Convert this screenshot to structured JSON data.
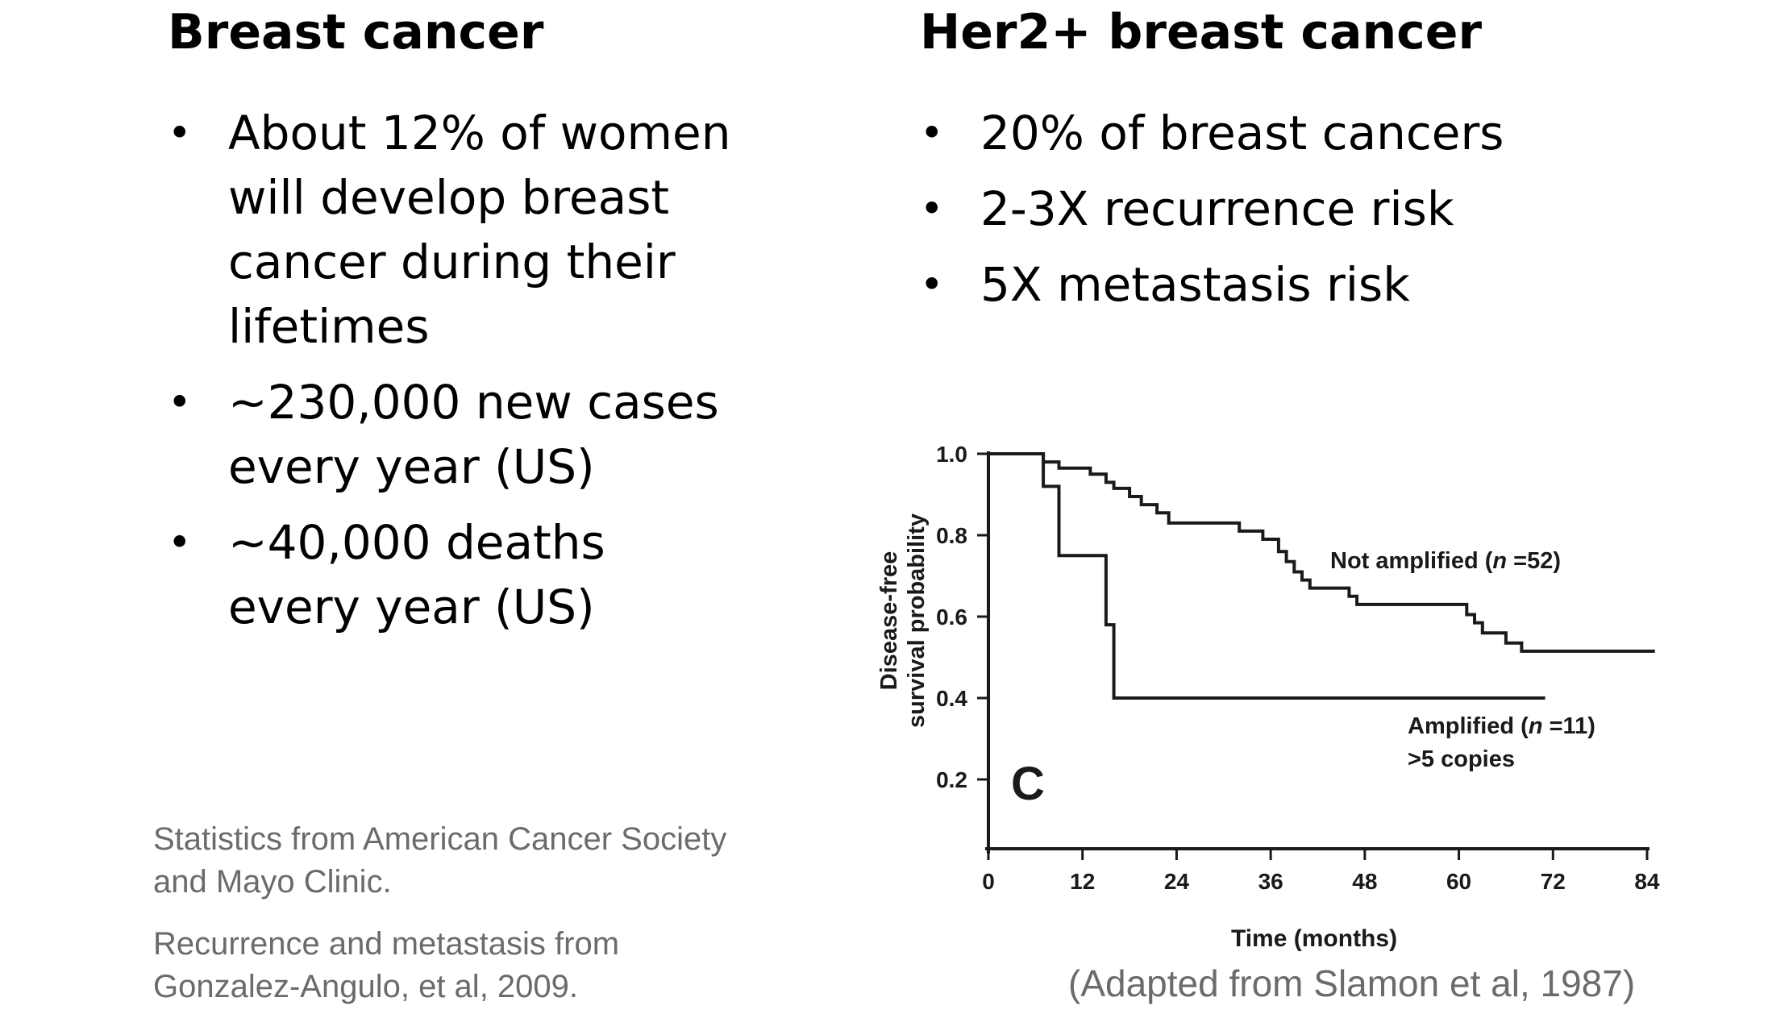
{
  "left_column": {
    "heading": "Breast cancer",
    "bullets": [
      "About 12% of women will develop breast cancer during their lifetimes",
      "~230,000 new cases every year (US)",
      "~40,000 deaths every year (US)"
    ],
    "notes": [
      "Statistics from American Cancer Society and Mayo Clinic.",
      "Recurrence and metastasis from Gonzalez-Angulo, et al, 2009."
    ]
  },
  "right_column": {
    "heading": "Her2+ breast cancer",
    "bullets": [
      "20% of breast cancers",
      "2-3X recurrence risk",
      "5X metastasis risk"
    ],
    "citation": "(Adapted from Slamon et al, 1987)"
  },
  "bullet_glyph": "•",
  "chart_data": {
    "type": "line",
    "step": true,
    "panel_letter": "C",
    "xlabel": "Time (months)",
    "ylabel": [
      "Disease-free",
      "survival probability"
    ],
    "xlim": [
      0,
      84
    ],
    "ylim": [
      0.2,
      1.0
    ],
    "x_ticks": [
      0,
      12,
      24,
      36,
      48,
      60,
      72,
      84
    ],
    "y_ticks": [
      0.2,
      0.4,
      0.6,
      0.8,
      1.0
    ],
    "y_tick_labels": [
      "0.2",
      "0.4",
      "0.6",
      "0.8",
      "1.0"
    ],
    "grid": false,
    "series": [
      {
        "name": "Not amplified (n =52)",
        "label_lines": [
          "Not amplified (",
          "n",
          " =52)"
        ],
        "points": [
          [
            0,
            1.0
          ],
          [
            7,
            1.0
          ],
          [
            7,
            0.98
          ],
          [
            9,
            0.98
          ],
          [
            9,
            0.965
          ],
          [
            13,
            0.965
          ],
          [
            13,
            0.95
          ],
          [
            15,
            0.95
          ],
          [
            15,
            0.93
          ],
          [
            16,
            0.93
          ],
          [
            16,
            0.915
          ],
          [
            18,
            0.915
          ],
          [
            18,
            0.895
          ],
          [
            19.5,
            0.895
          ],
          [
            19.5,
            0.875
          ],
          [
            21.5,
            0.875
          ],
          [
            21.5,
            0.855
          ],
          [
            23,
            0.855
          ],
          [
            23,
            0.83
          ],
          [
            32,
            0.83
          ],
          [
            32,
            0.81
          ],
          [
            35,
            0.81
          ],
          [
            35,
            0.79
          ],
          [
            37,
            0.79
          ],
          [
            37,
            0.76
          ],
          [
            38,
            0.76
          ],
          [
            38,
            0.735
          ],
          [
            39,
            0.735
          ],
          [
            39,
            0.71
          ],
          [
            40,
            0.71
          ],
          [
            40,
            0.69
          ],
          [
            41,
            0.69
          ],
          [
            41,
            0.67
          ],
          [
            46,
            0.67
          ],
          [
            46,
            0.65
          ],
          [
            47,
            0.65
          ],
          [
            47,
            0.63
          ],
          [
            61,
            0.63
          ],
          [
            61,
            0.605
          ],
          [
            62,
            0.605
          ],
          [
            62,
            0.585
          ],
          [
            63,
            0.585
          ],
          [
            63,
            0.56
          ],
          [
            66,
            0.56
          ],
          [
            66,
            0.535
          ],
          [
            68,
            0.535
          ],
          [
            68,
            0.515
          ],
          [
            85,
            0.515
          ]
        ]
      },
      {
        "name": "Amplified (n =11) >5 copies",
        "label_lines": [
          "Amplified (",
          "n",
          " =11)",
          ">5 copies"
        ],
        "points": [
          [
            0,
            1.0
          ],
          [
            7,
            1.0
          ],
          [
            7,
            0.92
          ],
          [
            9,
            0.92
          ],
          [
            9,
            0.75
          ],
          [
            15,
            0.75
          ],
          [
            15,
            0.58
          ],
          [
            16,
            0.58
          ],
          [
            16,
            0.4
          ],
          [
            71,
            0.4
          ]
        ]
      }
    ]
  }
}
